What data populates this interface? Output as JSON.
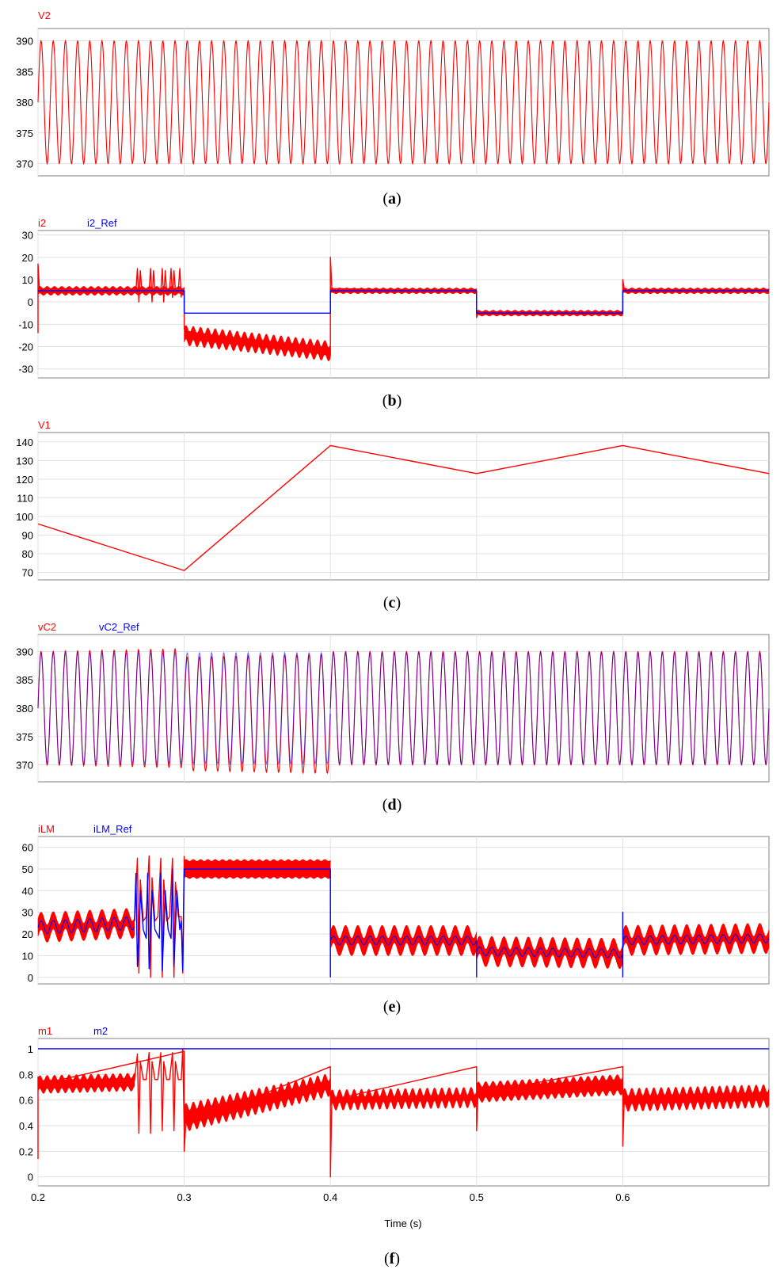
{
  "colors": {
    "red": "#ff0000",
    "blue": "#0000ff",
    "grid": "#e0e0e0",
    "frame": "#808080"
  },
  "xaxis": {
    "ticks": [
      "0.2",
      "0.3",
      "0.4",
      "0.5",
      "0.6"
    ],
    "label": "Time (s)"
  },
  "chart_data": [
    {
      "id": "a",
      "type": "line",
      "caption_letter": "a",
      "legend": [
        "V2"
      ],
      "legend_colors": [
        "#ff0000"
      ],
      "ylim": [
        368,
        392
      ],
      "yticks": [
        370,
        375,
        380,
        385,
        390
      ],
      "ytick_labels": [
        "370",
        "375",
        "380",
        "385",
        "390"
      ],
      "xlim": [
        0.2,
        0.7
      ],
      "series": [
        {
          "name": "V2",
          "color": "#ff0000",
          "kind": "sine",
          "x": [
            0.2,
            0.7
          ],
          "center": [
            380,
            380
          ],
          "amp": [
            10,
            10
          ],
          "freq": 120
        }
      ]
    },
    {
      "id": "b",
      "type": "line",
      "caption_letter": "b",
      "legend": [
        "i2",
        "i2_Ref"
      ],
      "legend_colors": [
        "#ff0000",
        "#0000ff"
      ],
      "ylim": [
        -34,
        32
      ],
      "yticks": [
        -30,
        -20,
        -10,
        0,
        10,
        20,
        30
      ],
      "ytick_labels": [
        "-30",
        "-20",
        "-10",
        "0",
        "10",
        "20",
        "30"
      ],
      "xlim": [
        0.2,
        0.7
      ],
      "series": [
        {
          "name": "i2",
          "color": "#ff0000",
          "kind": "band",
          "x": [
            0.2,
            0.3
          ],
          "center": [
            5,
            5
          ],
          "width": [
            3,
            3
          ],
          "ripple": 0.5
        },
        {
          "name": "i2",
          "color": "#ff0000",
          "kind": "band",
          "x": [
            0.3,
            0.4
          ],
          "center": [
            -15,
            -22
          ],
          "width": [
            6,
            6
          ],
          "ripple": 1.5
        },
        {
          "name": "i2",
          "color": "#ff0000",
          "kind": "band",
          "x": [
            0.4,
            0.5
          ],
          "center": [
            5,
            5
          ],
          "width": [
            2,
            2
          ],
          "ripple": 0.3
        },
        {
          "name": "i2",
          "color": "#ff0000",
          "kind": "band",
          "x": [
            0.5,
            0.6
          ],
          "center": [
            -5,
            -5
          ],
          "width": [
            2,
            2
          ],
          "ripple": 0.3
        },
        {
          "name": "i2",
          "color": "#ff0000",
          "kind": "band",
          "x": [
            0.6,
            0.7
          ],
          "center": [
            5,
            5
          ],
          "width": [
            2,
            2
          ],
          "ripple": 0.3
        },
        {
          "name": "i2",
          "color": "#ff0000",
          "kind": "poly",
          "x": [
            0.267,
            0.268,
            0.269,
            0.27,
            0.271,
            0.276,
            0.277,
            0.278,
            0.279,
            0.28,
            0.284,
            0.285,
            0.286,
            0.287,
            0.288,
            0.29,
            0.291,
            0.292,
            0.293,
            0.294,
            0.296,
            0.297,
            0.298
          ],
          "y": [
            5,
            15,
            0,
            14,
            5,
            5,
            15,
            0,
            14,
            5,
            5,
            15,
            0,
            14,
            5,
            5,
            15,
            2,
            14,
            5,
            5,
            15,
            2
          ]
        },
        {
          "name": "i2",
          "color": "#ff0000",
          "kind": "poly",
          "x": [
            0.2,
            0.2,
            0.201,
            0.3,
            0.3,
            0.301,
            0.4,
            0.4,
            0.401,
            0.5,
            0.5,
            0.501,
            0.6,
            0.6,
            0.601
          ],
          "y": [
            -14,
            17,
            5,
            5,
            -12,
            -13,
            -24,
            20,
            6,
            5,
            -7,
            -5,
            -5,
            10,
            6
          ]
        },
        {
          "name": "i2_Ref",
          "color": "#0000ff",
          "kind": "step",
          "x": [
            0.2,
            0.3,
            0.3,
            0.4,
            0.4,
            0.5,
            0.5,
            0.6,
            0.6,
            0.7
          ],
          "y": [
            5,
            5,
            -5,
            -5,
            5,
            5,
            -5,
            -5,
            5,
            5
          ]
        }
      ]
    },
    {
      "id": "c",
      "type": "line",
      "caption_letter": "c",
      "legend": [
        "V1"
      ],
      "legend_colors": [
        "#ff0000"
      ],
      "ylim": [
        66,
        145
      ],
      "yticks": [
        70,
        80,
        90,
        100,
        110,
        120,
        130,
        140
      ],
      "ytick_labels": [
        "70",
        "80",
        "90",
        "100",
        "110",
        "120",
        "130",
        "140"
      ],
      "xlim": [
        0.2,
        0.7
      ],
      "series": [
        {
          "name": "V1",
          "color": "#ff0000",
          "kind": "step",
          "x": [
            0.2,
            0.3,
            0.4,
            0.5,
            0.6,
            0.7
          ],
          "y": [
            96,
            71,
            138,
            123,
            138,
            123
          ]
        }
      ]
    },
    {
      "id": "d",
      "type": "line",
      "caption_letter": "d",
      "legend": [
        "vC2",
        "vC2_Ref"
      ],
      "legend_colors": [
        "#ff0000",
        "#0000ff"
      ],
      "ylim": [
        367,
        393
      ],
      "yticks": [
        370,
        375,
        380,
        385,
        390
      ],
      "ytick_labels": [
        "370",
        "375",
        "380",
        "385",
        "390"
      ],
      "xlim": [
        0.2,
        0.7
      ],
      "series": [
        {
          "name": "vC2",
          "color": "#ff0000",
          "kind": "sine",
          "x": [
            0.2,
            0.3
          ],
          "center": [
            380,
            380
          ],
          "amp": [
            10,
            10.5
          ],
          "freq": 120
        },
        {
          "name": "vC2",
          "color": "#ff0000",
          "kind": "sine",
          "x": [
            0.3,
            0.4
          ],
          "center": [
            379,
            379
          ],
          "amp": [
            10,
            10.5
          ],
          "freq": 120
        },
        {
          "name": "vC2",
          "color": "#ff0000",
          "kind": "sine",
          "x": [
            0.4,
            0.7
          ],
          "center": [
            380,
            380
          ],
          "amp": [
            10,
            10
          ],
          "freq": 120
        },
        {
          "name": "vC2_Ref",
          "color": "#0000ff",
          "kind": "sine",
          "x": [
            0.2,
            0.7
          ],
          "center": [
            380,
            380
          ],
          "amp": [
            9.8,
            9.8
          ],
          "freq": 120,
          "opacity": 0.55
        }
      ]
    },
    {
      "id": "e",
      "type": "line",
      "caption_letter": "e",
      "legend": [
        "iLM",
        "iLM_Ref"
      ],
      "legend_colors": [
        "#ff0000",
        "#0000ff"
      ],
      "ylim": [
        -3,
        65
      ],
      "yticks": [
        0,
        10,
        20,
        30,
        40,
        50,
        60
      ],
      "ytick_labels": [
        "0",
        "10",
        "20",
        "30",
        "40",
        "50",
        "60"
      ],
      "xlim": [
        0.2,
        0.7
      ],
      "series": [
        {
          "name": "iLM",
          "color": "#ff0000",
          "kind": "band",
          "x": [
            0.2,
            0.266
          ],
          "center": [
            23,
            25
          ],
          "width": [
            8,
            8
          ],
          "ripple": 3,
          "rfreq": 120
        },
        {
          "name": "iLM",
          "color": "#ff0000",
          "kind": "band",
          "x": [
            0.3,
            0.4
          ],
          "center": [
            50,
            50
          ],
          "width": [
            8,
            8
          ],
          "ripple": 0.4
        },
        {
          "name": "iLM",
          "color": "#ff0000",
          "kind": "band",
          "x": [
            0.4,
            0.5
          ],
          "center": [
            17,
            17
          ],
          "width": [
            8,
            8
          ],
          "ripple": 3,
          "rfreq": 120
        },
        {
          "name": "iLM",
          "color": "#ff0000",
          "kind": "band",
          "x": [
            0.5,
            0.6
          ],
          "center": [
            12,
            11
          ],
          "width": [
            8,
            8
          ],
          "ripple": 3,
          "rfreq": 120
        },
        {
          "name": "iLM",
          "color": "#ff0000",
          "kind": "band",
          "x": [
            0.6,
            0.7
          ],
          "center": [
            17,
            18
          ],
          "width": [
            8,
            8
          ],
          "ripple": 3,
          "rfreq": 120
        },
        {
          "name": "iLM",
          "color": "#ff0000",
          "kind": "poly",
          "x": [
            0.266,
            0.268,
            0.269,
            0.27,
            0.272,
            0.274,
            0.276,
            0.277,
            0.278,
            0.28,
            0.282,
            0.284,
            0.285,
            0.286,
            0.288,
            0.29,
            0.292,
            0.293,
            0.294,
            0.296,
            0.298,
            0.299,
            0.3
          ],
          "y": [
            26,
            55,
            2,
            45,
            26,
            28,
            56,
            0,
            46,
            26,
            28,
            55,
            0,
            45,
            26,
            28,
            55,
            0,
            44,
            28,
            28,
            2,
            56
          ]
        },
        {
          "name": "iLM_Ref",
          "color": "#0000ff",
          "kind": "sine",
          "x": [
            0.2,
            0.266
          ],
          "center": [
            23,
            25
          ],
          "amp": [
            3,
            3
          ],
          "freq": 120
        },
        {
          "name": "iLM_Ref",
          "color": "#0000ff",
          "kind": "poly",
          "x": [
            0.266,
            0.267,
            0.268,
            0.27,
            0.272,
            0.274,
            0.275,
            0.276,
            0.278,
            0.28,
            0.283,
            0.284,
            0.285,
            0.287,
            0.289,
            0.291,
            0.292,
            0.293,
            0.295,
            0.297,
            0.298,
            0.299,
            0.3
          ],
          "y": [
            26,
            48,
            5,
            40,
            22,
            18,
            48,
            4,
            40,
            22,
            18,
            48,
            3,
            40,
            22,
            18,
            50,
            5,
            40,
            22,
            26,
            3,
            50
          ]
        },
        {
          "name": "iLM_Ref",
          "color": "#0000ff",
          "kind": "step",
          "x": [
            0.3,
            0.4,
            0.4
          ],
          "y": [
            50,
            50,
            0
          ]
        },
        {
          "name": "iLM_Ref",
          "color": "#0000ff",
          "kind": "sine",
          "x": [
            0.4,
            0.5
          ],
          "center": [
            17,
            17
          ],
          "amp": [
            2,
            2
          ],
          "freq": 120
        },
        {
          "name": "iLM_Ref",
          "color": "#0000ff",
          "kind": "poly",
          "x": [
            0.5,
            0.5
          ],
          "y": [
            17,
            0
          ]
        },
        {
          "name": "iLM_Ref",
          "color": "#0000ff",
          "kind": "sine",
          "x": [
            0.5,
            0.6
          ],
          "center": [
            12,
            11
          ],
          "amp": [
            2,
            2
          ],
          "freq": 120
        },
        {
          "name": "iLM_Ref",
          "color": "#0000ff",
          "kind": "poly",
          "x": [
            0.6,
            0.6,
            0.6
          ],
          "y": [
            0,
            30,
            17
          ]
        },
        {
          "name": "iLM_Ref",
          "color": "#0000ff",
          "kind": "sine",
          "x": [
            0.6,
            0.7
          ],
          "center": [
            17,
            18
          ],
          "amp": [
            2,
            2
          ],
          "freq": 120
        }
      ]
    },
    {
      "id": "f",
      "type": "line",
      "caption_letter": "f",
      "legend": [
        "m1",
        "m2"
      ],
      "legend_colors": [
        "#ff0000",
        "#0000ff"
      ],
      "ylim": [
        -0.07,
        1.08
      ],
      "yticks": [
        0,
        0.2,
        0.4,
        0.6,
        0.8,
        1
      ],
      "ytick_labels": [
        "0",
        "0.2",
        "0.4",
        "0.6",
        "0.8",
        "1"
      ],
      "xlim": [
        0.2,
        0.7
      ],
      "series": [
        {
          "name": "m1",
          "color": "#ff0000",
          "kind": "band",
          "x": [
            0.2,
            0.266
          ],
          "center": [
            0.72,
            0.74
          ],
          "width": [
            0.1,
            0.1
          ],
          "ripple": 0.02
        },
        {
          "name": "m1",
          "color": "#ff0000",
          "kind": "band",
          "x": [
            0.3,
            0.4
          ],
          "center": [
            0.46,
            0.72
          ],
          "width": [
            0.16,
            0.12
          ],
          "ripple": 0.03
        },
        {
          "name": "m1",
          "color": "#ff0000",
          "kind": "band",
          "x": [
            0.4,
            0.5
          ],
          "center": [
            0.6,
            0.62
          ],
          "width": [
            0.1,
            0.1
          ],
          "ripple": 0.03
        },
        {
          "name": "m1",
          "color": "#ff0000",
          "kind": "band",
          "x": [
            0.5,
            0.6
          ],
          "center": [
            0.66,
            0.72
          ],
          "width": [
            0.12,
            0.12
          ],
          "ripple": 0.02
        },
        {
          "name": "m1",
          "color": "#ff0000",
          "kind": "band",
          "x": [
            0.6,
            0.7
          ],
          "center": [
            0.6,
            0.63
          ],
          "width": [
            0.12,
            0.12
          ],
          "ripple": 0.03
        },
        {
          "name": "m1",
          "color": "#ff0000",
          "kind": "poly",
          "x": [
            0.266,
            0.268,
            0.269,
            0.27,
            0.272,
            0.274,
            0.276,
            0.277,
            0.278,
            0.28,
            0.282,
            0.284,
            0.285,
            0.286,
            0.288,
            0.29,
            0.292,
            0.293,
            0.294,
            0.296,
            0.298,
            0.299,
            0.3
          ],
          "y": [
            0.75,
            0.96,
            0.34,
            0.9,
            0.76,
            0.76,
            0.97,
            0.34,
            0.9,
            0.76,
            0.76,
            0.97,
            0.36,
            0.9,
            0.76,
            0.76,
            0.97,
            0.36,
            0.9,
            0.76,
            0.76,
            1.0,
            0.36
          ]
        },
        {
          "name": "m1",
          "color": "#ff0000",
          "kind": "poly",
          "x": [
            0.2,
            0.2,
            0.201,
            0.3,
            0.3,
            0.301,
            0.4,
            0.4,
            0.401,
            0.5,
            0.5,
            0.501,
            0.6,
            0.6,
            0.601
          ],
          "y": [
            0.14,
            0.78,
            0.72,
            0.98,
            0.2,
            0.4,
            0.86,
            0.0,
            0.6,
            0.86,
            0.36,
            0.65,
            0.86,
            0.24,
            0.6
          ]
        },
        {
          "name": "m2",
          "color": "#0000ff",
          "kind": "step",
          "x": [
            0.2,
            0.7
          ],
          "y": [
            1,
            1
          ]
        }
      ]
    }
  ]
}
